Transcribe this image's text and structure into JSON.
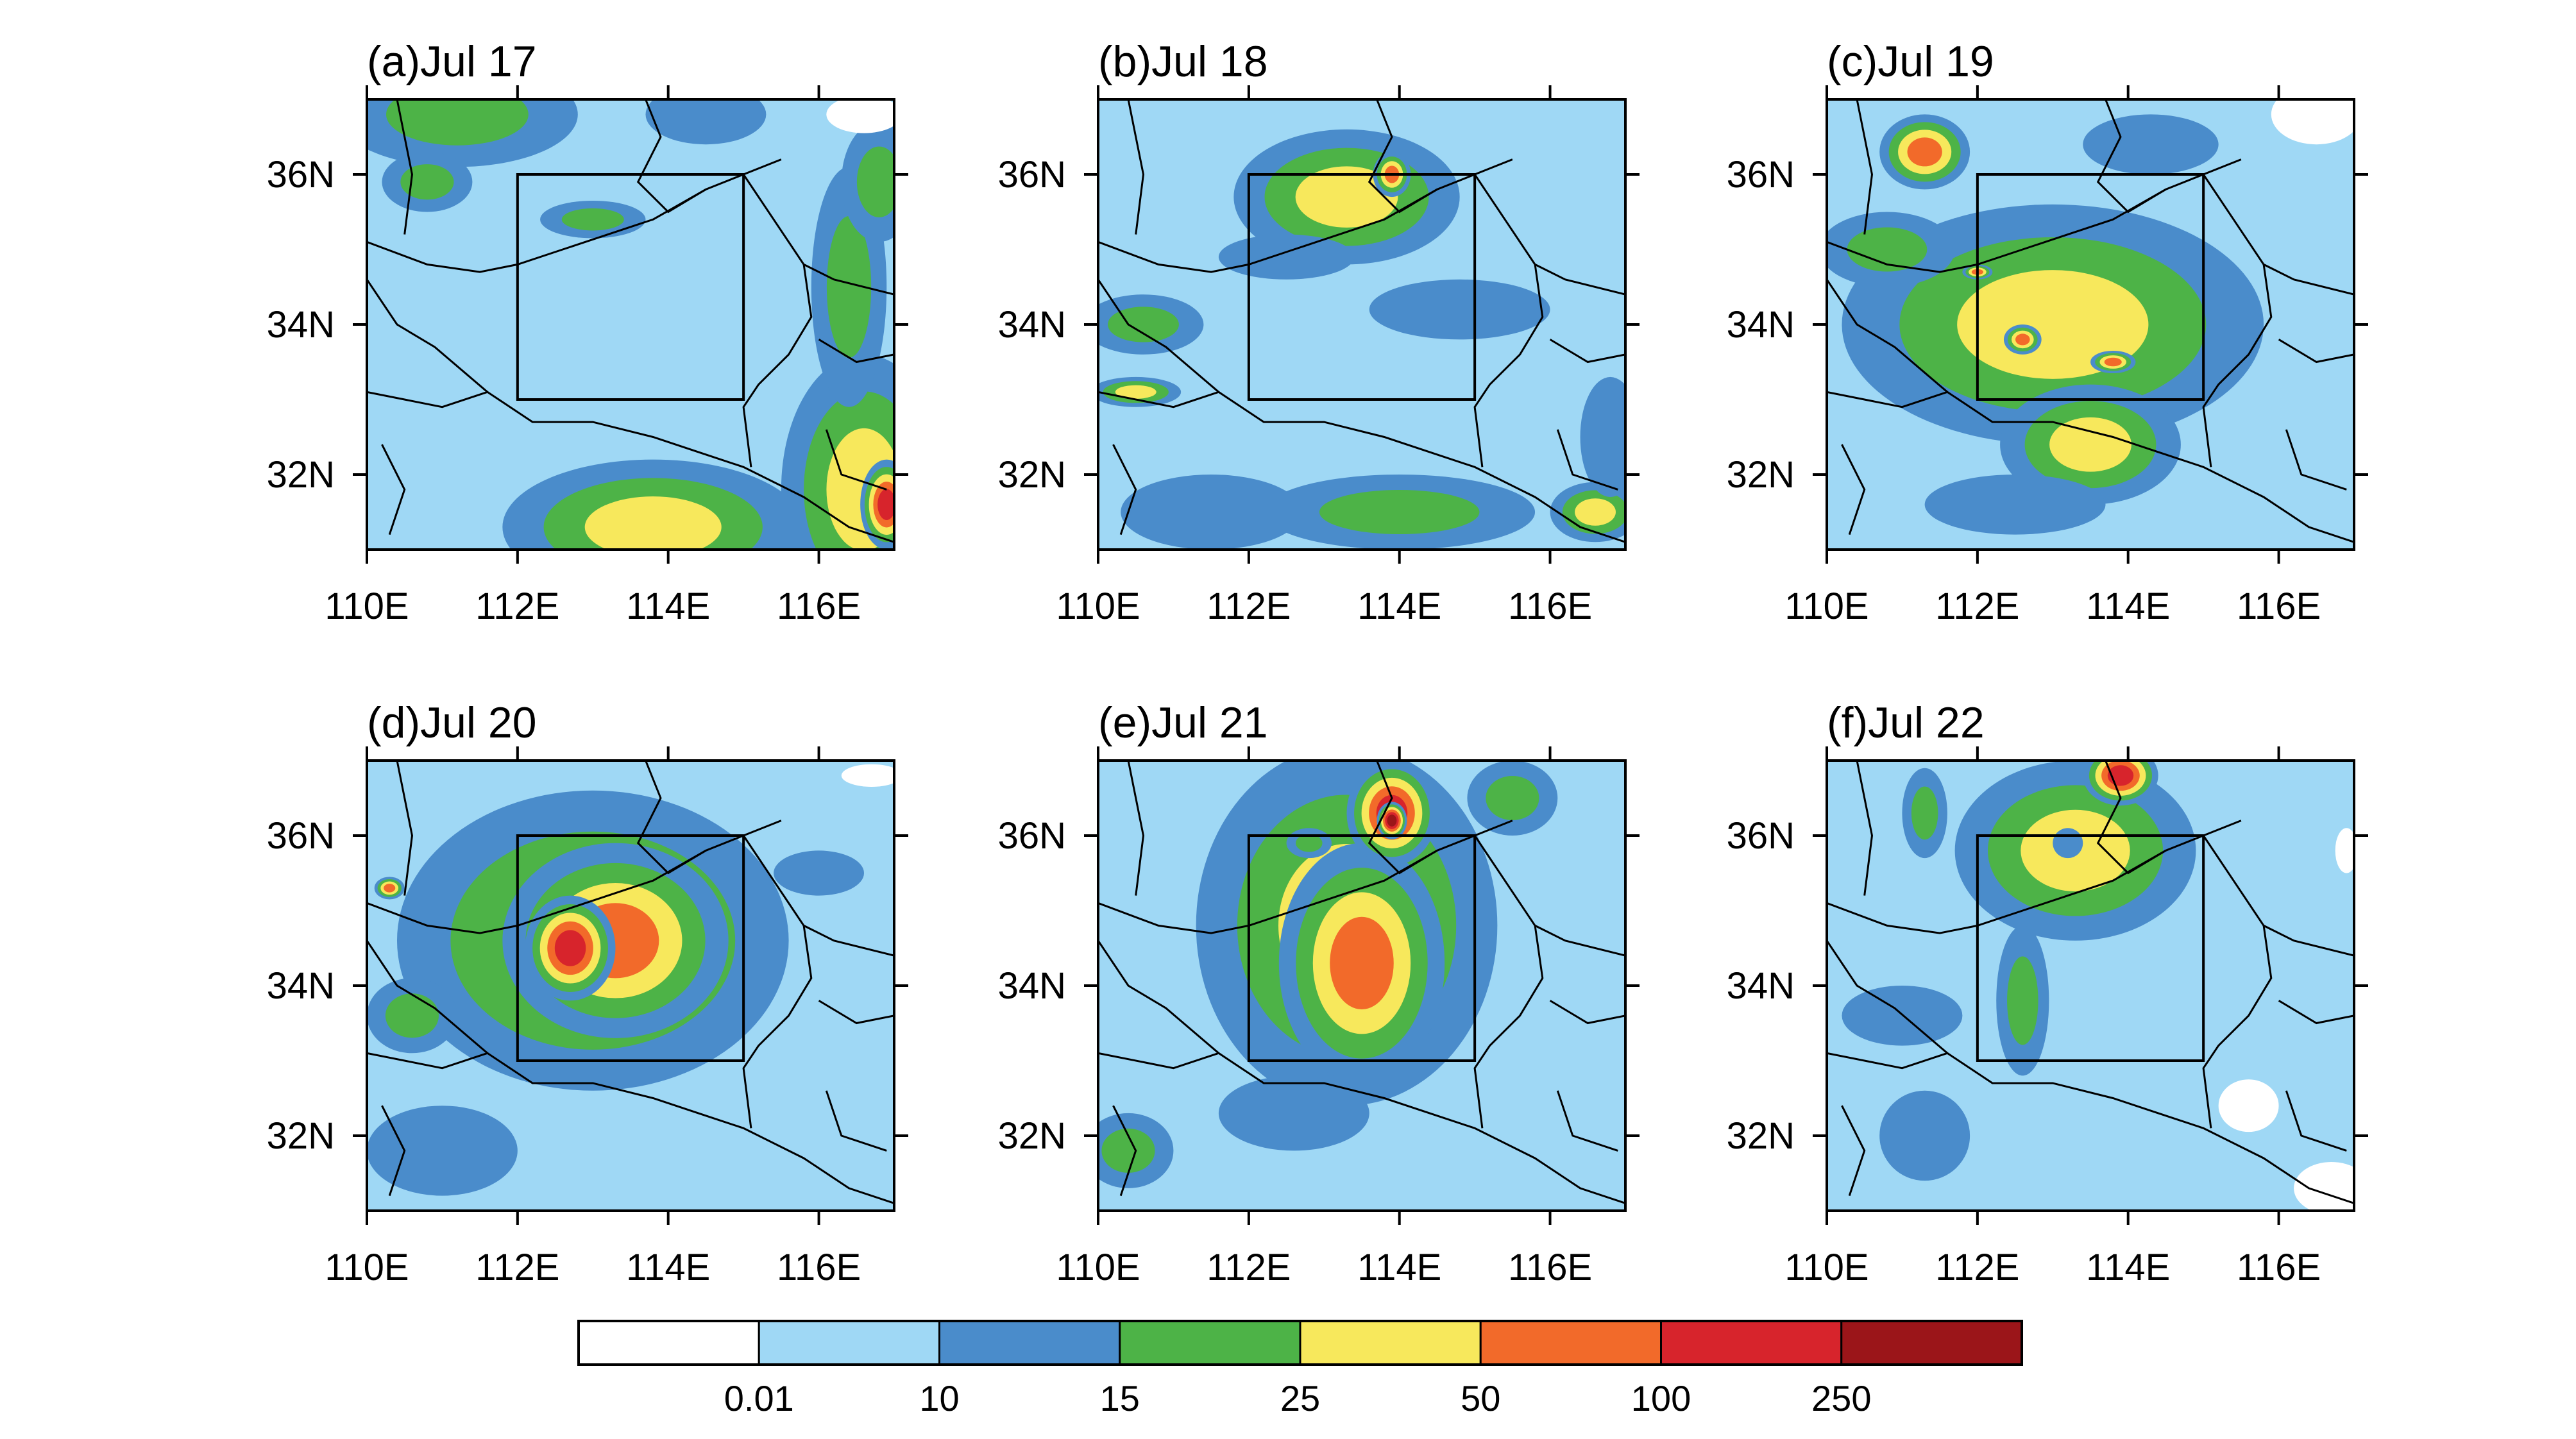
{
  "chart_data": {
    "type": "filled-contour-map",
    "panels": [
      {
        "title": "(a)Jul 17"
      },
      {
        "title": "(b)Jul 18"
      },
      {
        "title": "(c)Jul 19"
      },
      {
        "title": "(d)Jul 20"
      },
      {
        "title": "(e)Jul 21"
      },
      {
        "title": "(f)Jul 22"
      }
    ],
    "x_axis": {
      "range": [
        110,
        117
      ],
      "ticks": [
        110,
        112,
        114,
        116
      ],
      "tick_labels": [
        "110E",
        "112E",
        "114E",
        "116E"
      ]
    },
    "y_axis": {
      "range": [
        31,
        37
      ],
      "ticks": [
        32,
        34,
        36
      ],
      "tick_labels": [
        "32N",
        "34N",
        "36N"
      ]
    },
    "box_region": {
      "lon": [
        112,
        115
      ],
      "lat": [
        33,
        36
      ]
    },
    "colorbar": {
      "labels": [
        "0.01",
        "10",
        "15",
        "25",
        "50",
        "100",
        "250"
      ],
      "colors": [
        "#ffffff",
        "#9fd8f5",
        "#4a8ccb",
        "#4db347",
        "#f7e85c",
        "#f26a2a",
        "#d7242c",
        "#9b1519"
      ]
    },
    "panel_features": [
      {
        "blobs": [
          {
            "lon": 116.6,
            "lat": 31.8,
            "rx": 1.1,
            "ry": 1.8,
            "v": 45
          },
          {
            "lon": 113.8,
            "lat": 31.3,
            "rx": 2.0,
            "ry": 0.9,
            "v": 35
          },
          {
            "lon": 116.9,
            "lat": 31.6,
            "rx": 0.35,
            "ry": 0.6,
            "v": 120
          },
          {
            "lon": 116.4,
            "lat": 34.5,
            "rx": 0.5,
            "ry": 1.6,
            "v": 22
          },
          {
            "lon": 111.2,
            "lat": 36.8,
            "rx": 1.6,
            "ry": 0.7,
            "v": 17
          },
          {
            "lon": 110.8,
            "lat": 35.9,
            "rx": 0.6,
            "ry": 0.4,
            "v": 22
          },
          {
            "lon": 113.0,
            "lat": 35.4,
            "rx": 0.7,
            "ry": 0.25,
            "v": 20
          },
          {
            "lon": 114.5,
            "lat": 36.8,
            "rx": 0.8,
            "ry": 0.4,
            "v": 13
          },
          {
            "lon": 116.8,
            "lat": 35.9,
            "rx": 0.5,
            "ry": 0.8,
            "v": 23
          }
        ]
      },
      {
        "blobs": [
          {
            "lon": 113.3,
            "lat": 35.7,
            "rx": 1.5,
            "ry": 0.9,
            "v": 32
          },
          {
            "lon": 113.9,
            "lat": 36.0,
            "rx": 0.25,
            "ry": 0.3,
            "v": 75
          },
          {
            "lon": 110.6,
            "lat": 34.0,
            "rx": 0.8,
            "ry": 0.4,
            "v": 20
          },
          {
            "lon": 110.5,
            "lat": 33.1,
            "rx": 0.6,
            "ry": 0.2,
            "v": 30
          },
          {
            "lon": 114.0,
            "lat": 31.5,
            "rx": 1.8,
            "ry": 0.5,
            "v": 20
          },
          {
            "lon": 116.6,
            "lat": 31.5,
            "rx": 0.6,
            "ry": 0.4,
            "v": 40
          },
          {
            "lon": 114.8,
            "lat": 34.2,
            "rx": 1.2,
            "ry": 0.4,
            "v": 13
          },
          {
            "lon": 111.5,
            "lat": 31.5,
            "rx": 1.2,
            "ry": 0.5,
            "v": 13
          },
          {
            "lon": 112.5,
            "lat": 34.9,
            "rx": 0.9,
            "ry": 0.3,
            "v": 13
          },
          {
            "lon": 116.8,
            "lat": 32.5,
            "rx": 0.4,
            "ry": 0.8,
            "v": 13
          }
        ]
      },
      {
        "blobs": [
          {
            "lon": 113.0,
            "lat": 34.0,
            "rx": 2.8,
            "ry": 1.6,
            "v": 30
          },
          {
            "lon": 111.3,
            "lat": 36.3,
            "rx": 0.6,
            "ry": 0.5,
            "v": 65
          },
          {
            "lon": 113.5,
            "lat": 32.4,
            "rx": 1.2,
            "ry": 0.8,
            "v": 28
          },
          {
            "lon": 112.6,
            "lat": 33.8,
            "rx": 0.25,
            "ry": 0.2,
            "v": 60
          },
          {
            "lon": 113.8,
            "lat": 33.5,
            "rx": 0.3,
            "ry": 0.15,
            "v": 60
          },
          {
            "lon": 112.0,
            "lat": 34.7,
            "rx": 0.2,
            "ry": 0.1,
            "v": 60
          },
          {
            "lon": 110.8,
            "lat": 35.0,
            "rx": 0.9,
            "ry": 0.5,
            "v": 23
          },
          {
            "lon": 114.3,
            "lat": 36.4,
            "rx": 0.9,
            "ry": 0.4,
            "v": 13
          },
          {
            "lon": 112.5,
            "lat": 31.6,
            "rx": 1.2,
            "ry": 0.4,
            "v": 13
          }
        ]
      },
      {
        "blobs": [
          {
            "lon": 113.0,
            "lat": 34.6,
            "rx": 2.6,
            "ry": 2.0,
            "v": 35
          },
          {
            "lon": 113.3,
            "lat": 34.6,
            "rx": 1.5,
            "ry": 1.3,
            "v": 70
          },
          {
            "lon": 112.7,
            "lat": 34.5,
            "rx": 0.6,
            "ry": 0.7,
            "v": 150
          },
          {
            "lon": 110.6,
            "lat": 33.6,
            "rx": 0.6,
            "ry": 0.5,
            "v": 20
          },
          {
            "lon": 111.0,
            "lat": 31.8,
            "rx": 1.0,
            "ry": 0.6,
            "v": 13
          },
          {
            "lon": 110.3,
            "lat": 35.3,
            "rx": 0.2,
            "ry": 0.15,
            "v": 70
          },
          {
            "lon": 116.0,
            "lat": 35.5,
            "rx": 0.6,
            "ry": 0.3,
            "v": 13
          }
        ]
      },
      {
        "blobs": [
          {
            "lon": 113.3,
            "lat": 34.8,
            "rx": 2.0,
            "ry": 2.4,
            "v": 35
          },
          {
            "lon": 113.5,
            "lat": 34.3,
            "rx": 1.1,
            "ry": 1.6,
            "v": 70
          },
          {
            "lon": 113.9,
            "lat": 36.3,
            "rx": 0.6,
            "ry": 0.7,
            "v": 150
          },
          {
            "lon": 113.9,
            "lat": 36.2,
            "rx": 0.2,
            "ry": 0.25,
            "v": 300
          },
          {
            "lon": 110.4,
            "lat": 31.8,
            "rx": 0.6,
            "ry": 0.5,
            "v": 22
          },
          {
            "lon": 115.5,
            "lat": 36.5,
            "rx": 0.6,
            "ry": 0.5,
            "v": 20
          },
          {
            "lon": 112.6,
            "lat": 32.3,
            "rx": 1.0,
            "ry": 0.5,
            "v": 13
          },
          {
            "lon": 112.8,
            "lat": 35.9,
            "rx": 0.3,
            "ry": 0.2,
            "v": 20
          }
        ]
      },
      {
        "blobs": [
          {
            "lon": 113.3,
            "lat": 35.8,
            "rx": 1.6,
            "ry": 1.2,
            "v": 30
          },
          {
            "lon": 113.9,
            "lat": 36.8,
            "rx": 0.5,
            "ry": 0.4,
            "v": 120
          },
          {
            "lon": 112.6,
            "lat": 33.8,
            "rx": 0.35,
            "ry": 1.0,
            "v": 23
          },
          {
            "lon": 111.3,
            "lat": 36.3,
            "rx": 0.3,
            "ry": 0.6,
            "v": 20
          },
          {
            "lon": 111.0,
            "lat": 33.6,
            "rx": 0.8,
            "ry": 0.4,
            "v": 13
          },
          {
            "lon": 111.3,
            "lat": 32.0,
            "rx": 0.6,
            "ry": 0.6,
            "v": 13
          },
          {
            "lon": 113.2,
            "lat": 35.9,
            "rx": 0.2,
            "ry": 0.2,
            "v": 12
          }
        ]
      }
    ],
    "white_patches": [
      [
        {
          "lon": 116.6,
          "lat": 36.8,
          "rx": 0.5,
          "ry": 0.25
        }
      ],
      [],
      [
        {
          "lon": 116.5,
          "lat": 36.8,
          "rx": 0.6,
          "ry": 0.4
        }
      ],
      [
        {
          "lon": 116.7,
          "lat": 36.8,
          "rx": 0.4,
          "ry": 0.15
        }
      ],
      [],
      [
        {
          "lon": 115.6,
          "lat": 32.4,
          "rx": 0.4,
          "ry": 0.35
        },
        {
          "lon": 116.7,
          "lat": 31.3,
          "rx": 0.5,
          "ry": 0.35
        },
        {
          "lon": 116.9,
          "lat": 35.8,
          "rx": 0.15,
          "ry": 0.3
        }
      ]
    ],
    "boundaries": [
      [
        [
          110.0,
          35.1
        ],
        [
          110.8,
          34.8
        ],
        [
          111.5,
          34.7
        ],
        [
          112.0,
          34.8
        ],
        [
          112.6,
          35.0
        ],
        [
          113.2,
          35.2
        ],
        [
          113.8,
          35.4
        ],
        [
          114.5,
          35.8
        ],
        [
          115.0,
          36.0
        ],
        [
          115.5,
          36.2
        ]
      ],
      [
        [
          110.4,
          37.0
        ],
        [
          110.6,
          36.0
        ],
        [
          110.5,
          35.2
        ]
      ],
      [
        [
          113.7,
          37.0
        ],
        [
          113.9,
          36.5
        ],
        [
          113.6,
          35.9
        ],
        [
          114.0,
          35.5
        ],
        [
          114.5,
          35.8
        ]
      ],
      [
        [
          110.0,
          34.6
        ],
        [
          110.4,
          34.0
        ],
        [
          110.9,
          33.7
        ],
        [
          111.6,
          33.1
        ],
        [
          112.2,
          32.7
        ],
        [
          113.0,
          32.7
        ],
        [
          113.8,
          32.5
        ],
        [
          114.4,
          32.3
        ],
        [
          115.0,
          32.1
        ],
        [
          115.8,
          31.7
        ],
        [
          116.4,
          31.3
        ],
        [
          117.0,
          31.1
        ]
      ],
      [
        [
          110.0,
          33.1
        ],
        [
          111.0,
          32.9
        ],
        [
          111.6,
          33.1
        ]
      ],
      [
        [
          115.0,
          36.0
        ],
        [
          115.4,
          35.4
        ],
        [
          115.8,
          34.8
        ],
        [
          116.2,
          34.6
        ],
        [
          117.0,
          34.4
        ]
      ],
      [
        [
          115.8,
          34.8
        ],
        [
          115.9,
          34.1
        ],
        [
          115.6,
          33.6
        ],
        [
          115.2,
          33.2
        ],
        [
          115.0,
          32.9
        ],
        [
          115.1,
          32.1
        ]
      ],
      [
        [
          116.0,
          33.8
        ],
        [
          116.5,
          33.5
        ],
        [
          117.0,
          33.6
        ]
      ],
      [
        [
          116.1,
          32.6
        ],
        [
          116.3,
          32.0
        ],
        [
          116.9,
          31.8
        ]
      ],
      [
        [
          110.3,
          31.2
        ],
        [
          110.5,
          31.8
        ],
        [
          110.2,
          32.4
        ]
      ]
    ]
  }
}
